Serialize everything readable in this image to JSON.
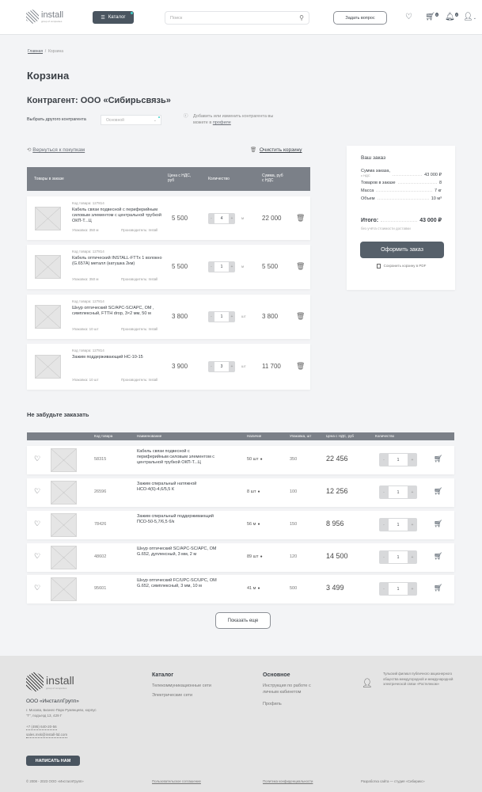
{
  "header": {
    "logo_text": "install",
    "logo_sub": "group of companies",
    "catalog_label": "Каталог",
    "search_placeholder": "Поиск",
    "ask_label": "Задать вопрос",
    "cart_badge": "0",
    "bell_badge": "0"
  },
  "breadcrumb": {
    "home": "Главная",
    "current": "Корзина"
  },
  "page_title": "Корзина",
  "contragent": {
    "heading": "Контрагент:  ООО «Сибирьсвязь»",
    "select_label": "Выбрать другого контрагента",
    "select_value": "Основной",
    "info_text": "Добавить или изменить контрагента вы можете в ",
    "info_link": "профиле"
  },
  "actions": {
    "back": "Вернуться к покупкам",
    "clear": "Очистить корзину"
  },
  "cart": {
    "headers": [
      "Товары в заказе",
      "Цена с НДС, руб",
      "Количество",
      "Сумма, руб с НДС"
    ],
    "items": [
      {
        "code": "Код товара: 127814",
        "name": "Кабель связи подвесной с периферийным силовым элементом с центральной трубкой ОКП-Т...Ц",
        "pack": "Упаковка: 350 м",
        "maker": "Производитель: Install",
        "price": "5 500",
        "qty": "4",
        "unit": "м",
        "sum": "22 000"
      },
      {
        "code": "Код товара: 127814",
        "name": "Кабель оптический INSTALL-FTTx 1 волокно (G.657A) металл (катушка 2км)",
        "pack": "Упаковка: 350 м",
        "maker": "Производитель: Install",
        "price": "5 500",
        "qty": "1",
        "unit": "м",
        "sum": "5 500"
      },
      {
        "code": "Код товара: 127814",
        "name": "Шнур оптический SC/APC-SC/APC, ОМ , симплексный, FTTH drop, 3×2 мм, 50 м",
        "pack": "Упаковка: 10 шт",
        "maker": "Производитель: Install",
        "price": "3 800",
        "qty": "1",
        "unit": "шт",
        "sum": "3 800"
      },
      {
        "code": "Код товара: 127814",
        "name": "Зажим поддерживающий НС-10-15",
        "pack": "Упаковка: 10 шт",
        "maker": "Производитель: Install",
        "price": "3 900",
        "qty": "3",
        "unit": "шт",
        "sum": "11 700"
      }
    ]
  },
  "summary": {
    "title": "Ваш заказ",
    "lines": [
      {
        "label": "Сумма заказа,",
        "sub": "с НДС",
        "value": "43 000 ₽"
      },
      {
        "label": "Товаров в заказе",
        "value": "8"
      },
      {
        "label": "Масса",
        "value": "7 кг"
      },
      {
        "label": "Объем",
        "value": "10 м³"
      }
    ],
    "total_label": "Итого:",
    "total_value": "43 000 ₽",
    "note": "без учёта стоимости доставки",
    "order_button": "Оформить заказ",
    "pdf_label": "Сохранить корзину в PDF"
  },
  "recommend": {
    "title": "Не забудьте заказать",
    "headers": [
      "Код товара",
      "Наименование",
      "Наличие",
      "Упаковка, шт",
      "Цена с НДС, руб",
      "Количество"
    ],
    "items": [
      {
        "code": "58315",
        "name": "Кабель связи подвесной с периферийным силовым элементом с центральной трубкой ОКП-Т...Ц",
        "stock": "50 шт",
        "pack": "350",
        "price": "22 456",
        "qty": "1"
      },
      {
        "code": "26596",
        "name": "Зажим спиральный натяжной НСО-4(6)-4,6/5,5 К",
        "stock": "8 шт",
        "pack": "100",
        "price": "12 256",
        "qty": "1"
      },
      {
        "code": "78426",
        "name": "Зажим спиральный поддерживающий ПСО-50-5,7/6,5 б/к",
        "stock": "56 м",
        "pack": "150",
        "price": "8 956",
        "qty": "1"
      },
      {
        "code": "48602",
        "name": "Шнур оптический SC/APC-SC/APC, OM G.652, дуплексный, 3 мм, 2 м",
        "stock": "89 шт",
        "pack": "120",
        "price": "14 500",
        "qty": "1"
      },
      {
        "code": "95601",
        "name": "Шнур оптический FC/UPC-SC/UPC, OM G.652, симплексный, 3 мм, 10 м",
        "stock": "41 м",
        "pack": "500",
        "price": "3 499",
        "qty": "1"
      }
    ],
    "show_more": "Показать еще"
  },
  "footer": {
    "company": "ООО «ИнсталлГрупп»",
    "address": "г. Москва, Бизнес-Парк Румянцево, корпус \"Г\", подъезд 13, 429 Г",
    "phone": "+7 (495) 640-20-56",
    "email": "sales.msk@install-ltd.com",
    "write_button": "НАПИСАТЬ НАМ",
    "catalog_title": "Каталог",
    "catalog_links": [
      "Телекоммуникационные сети",
      "Электрические сети"
    ],
    "main_title": "Основное",
    "main_links": [
      "Инструкция по работе с личным кабинетом",
      "Профиль"
    ],
    "partner_text": "Тульский филиал публичного акционерного общества междугородной и международной электрической связи «Ростелеком»",
    "copyright": "© 2008 - 2023 ООО «ИнсталлГрупп»",
    "agreement": "Пользовательское соглашение",
    "privacy": "Политика конфиденциальности",
    "dev": "Разработка сайта — студия «Сибирикс»"
  }
}
